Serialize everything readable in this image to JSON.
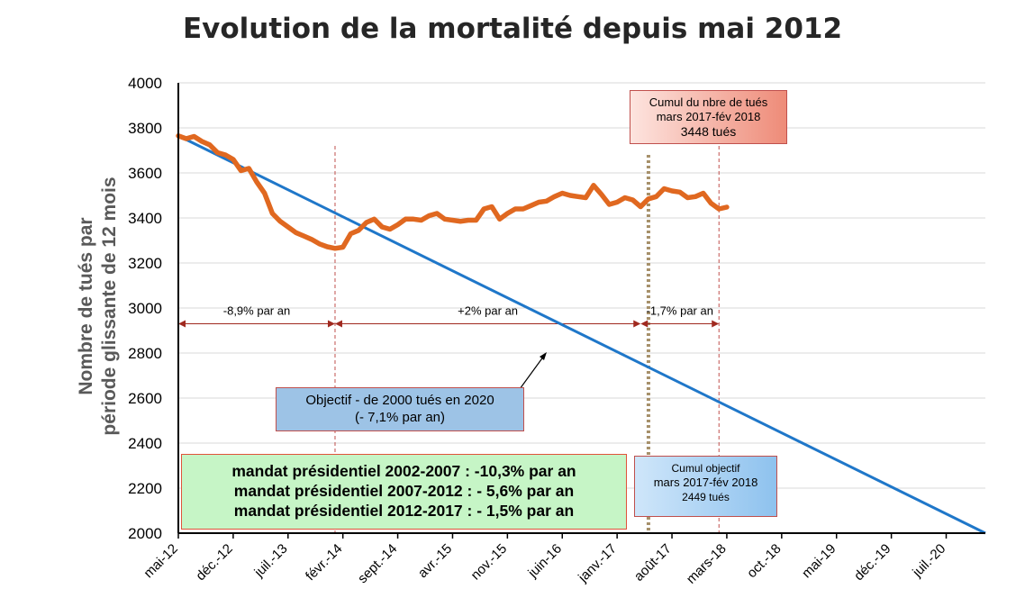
{
  "chart_data": {
    "type": "line",
    "title": "Evolution de la mortalité depuis mai 2012",
    "ylabel_lines": [
      "Nombre de tués par",
      "période  glissante de 12 mois"
    ],
    "ylim": [
      2000,
      4000
    ],
    "yticks": [
      2000,
      2200,
      2400,
      2600,
      2800,
      3000,
      3200,
      3400,
      3600,
      3800,
      4000
    ],
    "x_start": "2012-05",
    "x_end": "2020-12",
    "xtick_labels": [
      "mai-12",
      "déc.-12",
      "juil.-13",
      "févr.-14",
      "sept.-14",
      "avr.-15",
      "nov.-15",
      "juin-16",
      "janv.-17",
      "août-17",
      "mars-18",
      "oct.-18",
      "mai-19",
      "déc.-19",
      "juil.-20"
    ],
    "grid": "horizontal",
    "series": [
      {
        "role": "observed",
        "color": "#e06820",
        "values": [
          3765,
          3752,
          3762,
          3740,
          3725,
          3690,
          3680,
          3660,
          3610,
          3620,
          3560,
          3510,
          3420,
          3385,
          3360,
          3335,
          3320,
          3305,
          3285,
          3272,
          3265,
          3270,
          3330,
          3345,
          3380,
          3395,
          3360,
          3350,
          3370,
          3395,
          3395,
          3390,
          3410,
          3420,
          3395,
          3390,
          3385,
          3390,
          3390,
          3440,
          3450,
          3395,
          3420,
          3440,
          3440,
          3455,
          3470,
          3475,
          3495,
          3510,
          3500,
          3495,
          3490,
          3545,
          3505,
          3460,
          3470,
          3490,
          3480,
          3450,
          3485,
          3495,
          3530,
          3520,
          3515,
          3490,
          3495,
          3510,
          3465,
          3440,
          3448
        ]
      },
      {
        "role": "objectif",
        "color": "#1f77c9",
        "x": [
          "2012-05",
          "2020-12"
        ],
        "values": [
          3765,
          2000
        ]
      }
    ],
    "periods": [
      {
        "label": "-8,9% par an",
        "from": "2012-05",
        "to": "2014-01"
      },
      {
        "label": "+2% par an",
        "from": "2014-01",
        "to": "2017-04"
      },
      {
        "label": "-1,7% par an",
        "from": "2017-04",
        "to": "2018-02"
      }
    ],
    "vline_dashed": [
      "2014-01",
      "2018-02"
    ],
    "vline_dotted": [
      "2017-05"
    ]
  },
  "annotations": {
    "cumul_top": {
      "line1": "Cumul du nbre de tués",
      "line2": "mars 2017-fév 2018",
      "line3": "3448 tués"
    },
    "objectif": {
      "line1": "Objectif - de 2000 tués en 2020",
      "line2": "(- 7,1% par an)"
    },
    "mandats": [
      "mandat présidentiel 2002-2007 : -10,3% par an",
      "mandat présidentiel 2007-2012 : - 5,6% par an",
      "mandat présidentiel 2012-2017 : - 1,5% par an"
    ],
    "objectif_cumul": {
      "line1": "Cumul objectif",
      "line2": "mars 2017-fév 2018",
      "line3": "2449 tués"
    }
  }
}
